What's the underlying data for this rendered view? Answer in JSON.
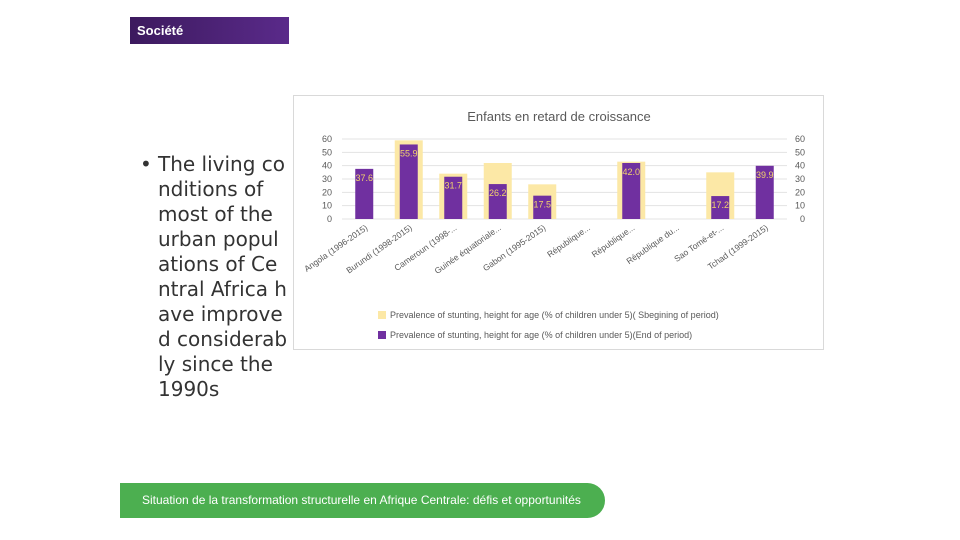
{
  "header": {
    "tag": "Société"
  },
  "bullet": {
    "text": "The living conditions of most of the urban populations of Central Africa have improved considerably since the 1990s"
  },
  "footer": {
    "text": "Situation de la transformation structurelle en Afrique Centrale:  défis et opportunités"
  },
  "colors": {
    "begin": "#fce8a6",
    "end": "#7030a0",
    "label_end": "#ffffff",
    "label_begin": "#e6b23c"
  },
  "chart_data": {
    "type": "bar",
    "title": "Enfants en retard de croissance",
    "categories": [
      "Angola (1996-2015)",
      "Burundi (1998-2015)",
      "Cameroun (1998-...",
      "Guinée équatoriale...",
      "Gabon (1995-2015)",
      "République...",
      "République...",
      "République du...",
      "Sao Tomé-et-...",
      "Tchad (1999-2015)"
    ],
    "series": [
      {
        "name": "Prevalence of stunting, height for age (% of children under 5)( Sbegining of period)",
        "values": [
          null,
          59,
          34,
          42,
          26,
          null,
          43,
          null,
          35,
          null
        ]
      },
      {
        "name": "Prevalence of stunting, height for age (% of children under 5)(End of period)",
        "values": [
          37.6,
          55.9,
          31.7,
          26.2,
          17.5,
          null,
          42.0,
          null,
          17.2,
          39.9
        ]
      }
    ],
    "data_labels": [
      "37.6",
      "55.9",
      "31.7",
      "26.2",
      "17.5",
      "",
      "42.0",
      "",
      "17.2",
      "39.9"
    ],
    "y_ticks": [
      "0",
      "10",
      "20",
      "30",
      "40",
      "50",
      "60"
    ],
    "ylim": [
      0,
      60
    ],
    "legend_position": "bottom"
  }
}
